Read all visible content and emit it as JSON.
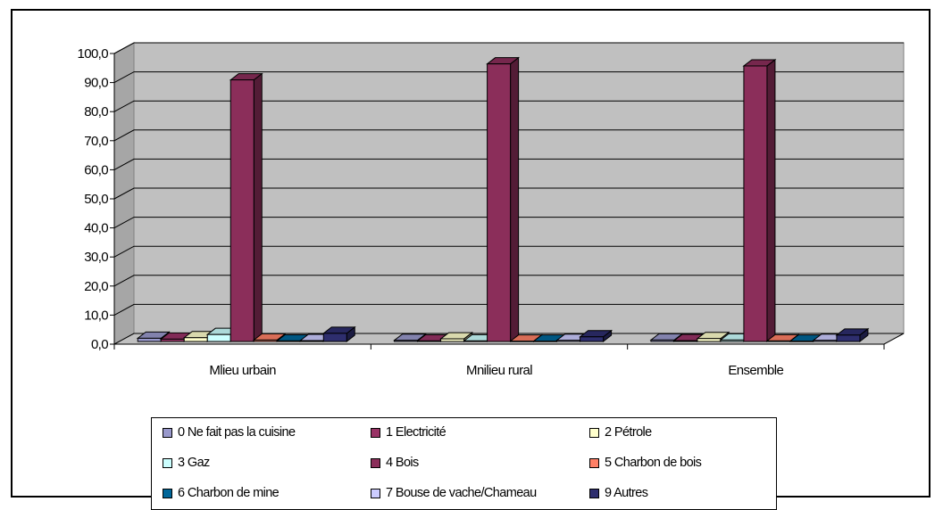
{
  "chart_data": {
    "type": "bar",
    "bar_style": "3d-clustered",
    "categories": [
      "Mlieu urbain",
      "Mnilieu rural",
      "Ensemble"
    ],
    "yticks": [
      "0,0",
      "10,0",
      "20,0",
      "30,0",
      "40,0",
      "50,0",
      "60,0",
      "70,0",
      "80,0",
      "90,0",
      "100,0"
    ],
    "ylim": [
      0,
      100
    ],
    "grid": true,
    "legend_position": "bottom",
    "series": [
      {
        "name": "0 Ne fait pas la cuisine",
        "color": "#9999cc",
        "values": [
          1.1,
          0.4,
          0.5
        ]
      },
      {
        "name": "1 Electricité",
        "color": "#993366",
        "values": [
          0.8,
          0.2,
          0.3
        ]
      },
      {
        "name": "2 Pétrole",
        "color": "#ffffcc",
        "values": [
          1.3,
          0.9,
          1.0
        ]
      },
      {
        "name": "3 Gaz",
        "color": "#ccffff",
        "values": [
          2.4,
          0.2,
          0.5
        ]
      },
      {
        "name": "4 Bois",
        "color": "#8b2e5a",
        "values": [
          90.0,
          95.5,
          94.8
        ]
      },
      {
        "name": "5 Charbon de bois",
        "color": "#ff8066",
        "values": [
          0.5,
          0.1,
          0.2
        ]
      },
      {
        "name": "6 Charbon de mine",
        "color": "#006699",
        "values": [
          0.2,
          0.1,
          0.1
        ]
      },
      {
        "name": "7 Bouse de vache/Chameau",
        "color": "#ccccff",
        "values": [
          0.3,
          0.4,
          0.4
        ]
      },
      {
        "name": "9 Autres",
        "color": "#2e2e6e",
        "values": [
          2.8,
          1.6,
          2.2
        ]
      }
    ]
  }
}
